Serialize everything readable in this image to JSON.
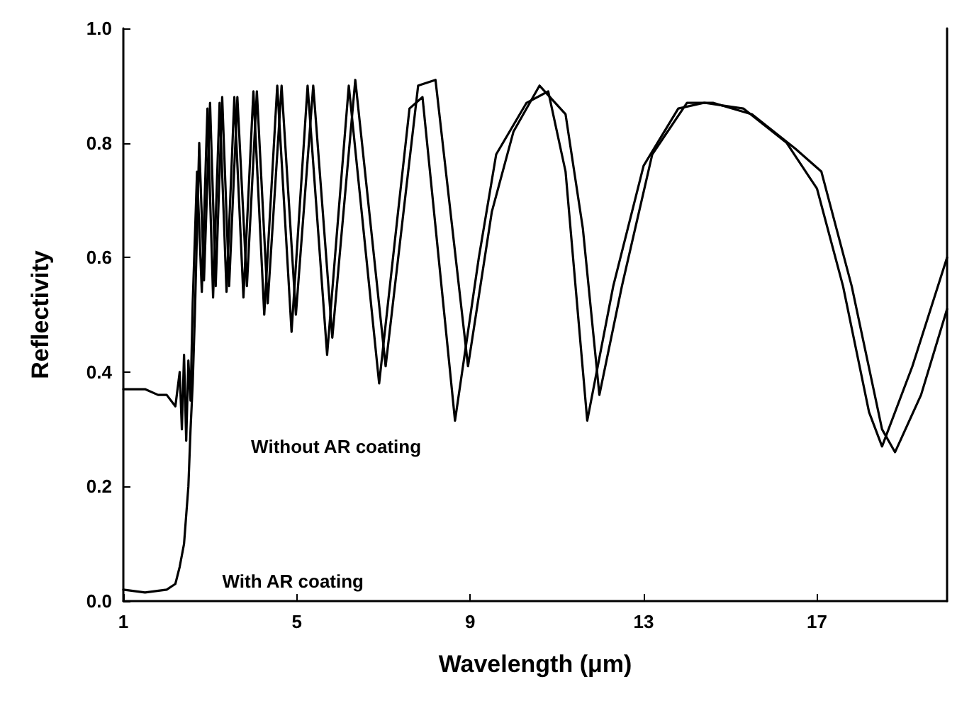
{
  "chart_data": {
    "type": "line",
    "xlabel": "Wavelength (μm)",
    "ylabel": "Reflectivity",
    "xlim": [
      1,
      20
    ],
    "xticks": [
      1,
      5,
      9,
      13,
      17
    ],
    "ylim": [
      0,
      1
    ],
    "yticks": [
      {
        "value": 0,
        "label": "0.0"
      },
      {
        "value": 0.2,
        "label": "0.2"
      },
      {
        "value": 0.4,
        "label": "0.4"
      },
      {
        "value": 0.6,
        "label": "0.6"
      },
      {
        "value": 0.8,
        "label": "0.8"
      },
      {
        "value": 1,
        "label": "1.0"
      }
    ],
    "grid": false,
    "legend": false,
    "marker": "none",
    "line_style": "solid",
    "series": [
      {
        "name": "Without AR coating",
        "color": "#000000",
        "x": [
          1,
          1.5,
          1.8,
          2,
          2.2,
          2.3,
          2.35,
          2.4,
          2.45,
          2.5,
          2.55,
          2.6,
          2.7,
          2.81,
          2.94,
          3.07,
          3.22,
          3.38,
          3.56,
          3.77,
          4,
          4.25,
          4.55,
          4.88,
          5.25,
          5.7,
          6.2,
          6.9,
          7.6,
          7.9,
          8.65,
          9.2,
          9.6,
          10.3,
          10.8,
          11.2,
          11.7,
          12.3,
          13,
          13.8,
          14.4,
          15.3,
          16.3,
          17,
          17.6,
          18.2,
          18.5,
          19.2,
          20
        ],
        "values": [
          0.37,
          0.37,
          0.36,
          0.36,
          0.34,
          0.4,
          0.3,
          0.43,
          0.28,
          0.42,
          0.35,
          0.52,
          0.75,
          0.54,
          0.86,
          0.53,
          0.87,
          0.54,
          0.88,
          0.53,
          0.89,
          0.5,
          0.9,
          0.47,
          0.9,
          0.43,
          0.9,
          0.38,
          0.86,
          0.88,
          0.315,
          0.6,
          0.78,
          0.87,
          0.89,
          0.75,
          0.315,
          0.55,
          0.76,
          0.86,
          0.87,
          0.86,
          0.8,
          0.72,
          0.55,
          0.33,
          0.27,
          0.41,
          0.6
        ]
      },
      {
        "name": "With AR coating",
        "color": "#000000",
        "x": [
          1,
          1.5,
          2,
          2.2,
          2.3,
          2.4,
          2.5,
          2.55,
          2.6,
          2.65,
          2.75,
          2.86,
          3,
          3.13,
          3.28,
          3.44,
          3.63,
          3.85,
          4.08,
          4.33,
          4.65,
          4.98,
          5.38,
          5.82,
          6.35,
          7.05,
          7.8,
          8.2,
          8.95,
          9.5,
          10,
          10.6,
          11.2,
          11.6,
          11.98,
          12.5,
          13.2,
          14,
          14.6,
          15.5,
          16.5,
          17.1,
          17.8,
          18.5,
          18.8,
          19.4,
          20
        ],
        "values": [
          0.02,
          0.015,
          0.02,
          0.03,
          0.06,
          0.1,
          0.2,
          0.3,
          0.38,
          0.5,
          0.8,
          0.56,
          0.87,
          0.55,
          0.88,
          0.55,
          0.88,
          0.55,
          0.89,
          0.52,
          0.9,
          0.5,
          0.9,
          0.46,
          0.91,
          0.41,
          0.9,
          0.91,
          0.41,
          0.68,
          0.82,
          0.9,
          0.85,
          0.65,
          0.36,
          0.55,
          0.78,
          0.87,
          0.87,
          0.85,
          0.79,
          0.75,
          0.55,
          0.3,
          0.26,
          0.36,
          0.51
        ]
      }
    ]
  }
}
